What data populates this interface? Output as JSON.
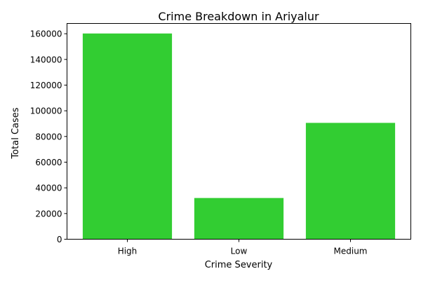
{
  "chart_data": {
    "type": "bar",
    "title": "Crime Breakdown in Ariyalur",
    "xlabel": "Crime Severity",
    "ylabel": "Total Cases",
    "categories": [
      "High",
      "Low",
      "Medium"
    ],
    "values": [
      160200,
      32100,
      90600
    ],
    "ylim": [
      0,
      168000
    ],
    "yticks": [
      0,
      20000,
      40000,
      60000,
      80000,
      100000,
      120000,
      140000,
      160000
    ],
    "bar_color": "#32cd32",
    "grid": false,
    "legend": "none"
  }
}
